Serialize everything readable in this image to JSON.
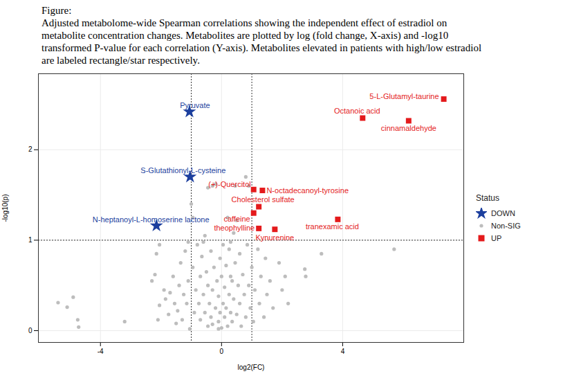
{
  "chart_data": {
    "type": "scatter",
    "title": "Figure:",
    "subtitle": "Adjusted metabolome-wide Spearman correlations showing the independent effect of estradiol on metabolite concentration changes. Metabolites are plotted by log (fold change, X-axis) and -log10 transformed P-value for each correlation (Y-axis). Metabolites elevated in patients with high/low estradiol are labeled rectangle/star respectively.",
    "x_label": "log2(FC)",
    "y_label": "-log10(p)",
    "xlim": [
      -6.05,
      8
    ],
    "ylim": [
      -0.13,
      2.84
    ],
    "xticks": [
      -4,
      0,
      4
    ],
    "yticks": [
      0,
      1,
      2
    ],
    "grid": true,
    "legend": "right",
    "legend_title": "Status",
    "reference_lines": {
      "x": [
        -1,
        1
      ],
      "y": [
        1
      ]
    },
    "series": [
      {
        "name": "DOWN",
        "color": "#1c3f9e",
        "marker": "star",
        "points": [
          {
            "x": -1.06,
            "y": 2.42,
            "label": "Pyruvate"
          },
          {
            "x": -1.04,
            "y": 1.7,
            "label": "S-Glutathionyl-L-cysteine"
          },
          {
            "x": -2.15,
            "y": 1.16,
            "label": "N-heptanoyl-L-homoserine lactone"
          }
        ]
      },
      {
        "name": "Non-SIG",
        "color": "#bdbdbd",
        "marker": "circle",
        "points": [
          {
            "x": -5.4,
            "y": 0.31
          },
          {
            "x": -5.1,
            "y": 0.26
          },
          {
            "x": -4.9,
            "y": 0.37
          },
          {
            "x": -4.75,
            "y": 0.12
          },
          {
            "x": -4.72,
            "y": 0.04
          },
          {
            "x": -3.2,
            "y": 0.1
          },
          {
            "x": -2.2,
            "y": 0.62
          },
          {
            "x": -2.15,
            "y": 0.85
          },
          {
            "x": -2.05,
            "y": 0.95
          },
          {
            "x": -2.3,
            "y": 0.55
          },
          {
            "x": -2.05,
            "y": 0.28
          },
          {
            "x": -2.1,
            "y": 0.12
          },
          {
            "x": -1.9,
            "y": 0.45
          },
          {
            "x": -1.85,
            "y": 0.35
          },
          {
            "x": -1.7,
            "y": 0.42
          },
          {
            "x": -1.75,
            "y": 0.18
          },
          {
            "x": -1.6,
            "y": 0.6
          },
          {
            "x": -1.55,
            "y": 0.3
          },
          {
            "x": -1.5,
            "y": 0.08
          },
          {
            "x": -1.4,
            "y": 0.5
          },
          {
            "x": -1.45,
            "y": 0.22
          },
          {
            "x": -1.35,
            "y": 0.75
          },
          {
            "x": -1.3,
            "y": 0.12
          },
          {
            "x": -1.25,
            "y": 0.4
          },
          {
            "x": -1.2,
            "y": 0.88
          },
          {
            "x": -1.15,
            "y": 0.3
          },
          {
            "x": -1.1,
            "y": 0.55
          },
          {
            "x": -1.1,
            "y": 0.98
          },
          {
            "x": -1.05,
            "y": 0.02
          },
          {
            "x": -1.0,
            "y": 1.4
          },
          {
            "x": -0.95,
            "y": 1.25
          },
          {
            "x": -0.95,
            "y": 0.7
          },
          {
            "x": -0.9,
            "y": 0.2
          },
          {
            "x": -0.85,
            "y": 0.45
          },
          {
            "x": -0.8,
            "y": 0.95
          },
          {
            "x": -0.75,
            "y": 0.3
          },
          {
            "x": -0.7,
            "y": 0.6
          },
          {
            "x": -0.7,
            "y": 0.12
          },
          {
            "x": -0.65,
            "y": 0.82
          },
          {
            "x": -0.6,
            "y": 0.4
          },
          {
            "x": -0.6,
            "y": 0.98
          },
          {
            "x": -0.55,
            "y": 0.2
          },
          {
            "x": -0.55,
            "y": 1.05
          },
          {
            "x": -0.5,
            "y": 0.65
          },
          {
            "x": -0.45,
            "y": 0.05
          },
          {
            "x": -0.45,
            "y": 0.5
          },
          {
            "x": -0.45,
            "y": 1.58
          },
          {
            "x": -0.4,
            "y": 0.3
          },
          {
            "x": -0.35,
            "y": 0.88
          },
          {
            "x": -0.35,
            "y": 0.15
          },
          {
            "x": -0.3,
            "y": 1.6
          },
          {
            "x": -0.3,
            "y": 0.45
          },
          {
            "x": -0.3,
            "y": 0.07
          },
          {
            "x": -0.25,
            "y": 0.7
          },
          {
            "x": -0.2,
            "y": 1.62
          },
          {
            "x": -0.2,
            "y": 0.25
          },
          {
            "x": -0.15,
            "y": 0.55
          },
          {
            "x": -0.1,
            "y": 0.1
          },
          {
            "x": -0.1,
            "y": 0.38
          },
          {
            "x": -0.1,
            "y": 0.02
          },
          {
            "x": -0.05,
            "y": 0.8
          },
          {
            "x": -0.05,
            "y": 0.2
          },
          {
            "x": 0,
            "y": 0.6
          },
          {
            "x": 0,
            "y": 0.03
          },
          {
            "x": 0.05,
            "y": 0.3
          },
          {
            "x": 0.05,
            "y": 0.95
          },
          {
            "x": 0.1,
            "y": 0.15
          },
          {
            "x": 0.1,
            "y": 0.48
          },
          {
            "x": 0.15,
            "y": 0.72
          },
          {
            "x": 0.15,
            "y": 0.25
          },
          {
            "x": 0.2,
            "y": 1.25
          },
          {
            "x": 0.2,
            "y": 0.05
          },
          {
            "x": 0.25,
            "y": 0.4
          },
          {
            "x": 0.25,
            "y": 0.9
          },
          {
            "x": 0.3,
            "y": 0.2
          },
          {
            "x": 0.3,
            "y": 0.6
          },
          {
            "x": 0.3,
            "y": 0.98
          },
          {
            "x": 0.35,
            "y": 0.1
          },
          {
            "x": 0.35,
            "y": 0.55
          },
          {
            "x": 0.4,
            "y": 0.35
          },
          {
            "x": 0.4,
            "y": 1.08
          },
          {
            "x": 0.45,
            "y": 0.75
          },
          {
            "x": 0.45,
            "y": 1.6
          },
          {
            "x": 0.5,
            "y": 1.22
          },
          {
            "x": 0.5,
            "y": 0.18
          },
          {
            "x": 0.55,
            "y": 0.5
          },
          {
            "x": 0.6,
            "y": 0.3
          },
          {
            "x": 0.6,
            "y": 0.85
          },
          {
            "x": 0.65,
            "y": 0.05
          },
          {
            "x": 0.7,
            "y": 0.62
          },
          {
            "x": 0.75,
            "y": 0.4
          },
          {
            "x": 0.8,
            "y": 1.7
          },
          {
            "x": 0.8,
            "y": 0.15
          },
          {
            "x": 0.85,
            "y": 0.95
          },
          {
            "x": 0.9,
            "y": 1.6
          },
          {
            "x": 0.9,
            "y": 0.5
          },
          {
            "x": 0.95,
            "y": 0.25
          },
          {
            "x": 1.0,
            "y": 0.7
          },
          {
            "x": 1.05,
            "y": 0.1
          },
          {
            "x": 1.1,
            "y": 0.45
          },
          {
            "x": 1.2,
            "y": 0.9
          },
          {
            "x": 1.25,
            "y": 0.3
          },
          {
            "x": 1.3,
            "y": 0.6
          },
          {
            "x": 1.4,
            "y": 0.15
          },
          {
            "x": 1.45,
            "y": 0.8
          },
          {
            "x": 1.5,
            "y": 0.4
          },
          {
            "x": 1.6,
            "y": 0.55
          },
          {
            "x": 1.7,
            "y": 0.25
          },
          {
            "x": 1.9,
            "y": 0.75
          },
          {
            "x": 2.0,
            "y": 0.45
          },
          {
            "x": 2.1,
            "y": 0.6
          },
          {
            "x": 2.2,
            "y": 0.3
          },
          {
            "x": 2.75,
            "y": 0.68
          },
          {
            "x": 2.78,
            "y": 0.6
          },
          {
            "x": 3.3,
            "y": 0.85
          },
          {
            "x": 5.7,
            "y": 0.9
          }
        ]
      },
      {
        "name": "UP",
        "color": "#e41a1c",
        "marker": "square",
        "points": [
          {
            "x": 7.34,
            "y": 2.56,
            "label": "5-L-Glutamyl-taurine"
          },
          {
            "x": 4.66,
            "y": 2.35,
            "label": "Octanoic acid"
          },
          {
            "x": 6.18,
            "y": 2.32,
            "label": "cinnamaldehyde"
          },
          {
            "x": 1.06,
            "y": 1.56,
            "label": "(+)-Quercitol"
          },
          {
            "x": 1.35,
            "y": 1.55,
            "label": "N-octadecanoyl-tyrosine"
          },
          {
            "x": 1.23,
            "y": 1.37,
            "label": "Cholesterol sulfate"
          },
          {
            "x": 1.06,
            "y": 1.3,
            "label": "caffeine"
          },
          {
            "x": 1.23,
            "y": 1.13,
            "label": "theophylline"
          },
          {
            "x": 1.76,
            "y": 1.12,
            "label": "Kynurenine"
          },
          {
            "x": 3.84,
            "y": 1.23,
            "label": "tranexamic acid"
          }
        ]
      }
    ]
  }
}
